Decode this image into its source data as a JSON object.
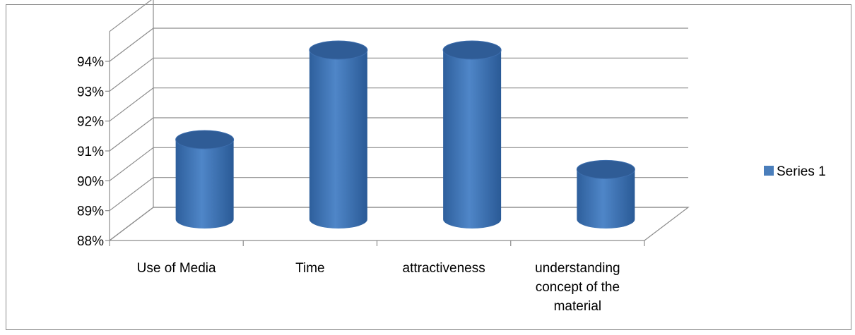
{
  "chart_data": {
    "type": "bar",
    "style": "3d-cylinder",
    "categories": [
      "Use of Media",
      "Time",
      "attractiveness",
      "understanding concept of the material"
    ],
    "category_lines": [
      [
        "Use of Media"
      ],
      [
        "Time"
      ],
      [
        "attractiveness"
      ],
      [
        "understanding",
        "concept of the",
        "material"
      ]
    ],
    "series": [
      {
        "name": "Series 1",
        "values": [
          91,
          94,
          94,
          90
        ],
        "color": "#4a7ebb"
      }
    ],
    "y_ticks": [
      "88%",
      "89%",
      "90%",
      "91%",
      "92%",
      "93%",
      "94%"
    ],
    "ylim": [
      88,
      94
    ],
    "grid": true,
    "legend": "right"
  }
}
